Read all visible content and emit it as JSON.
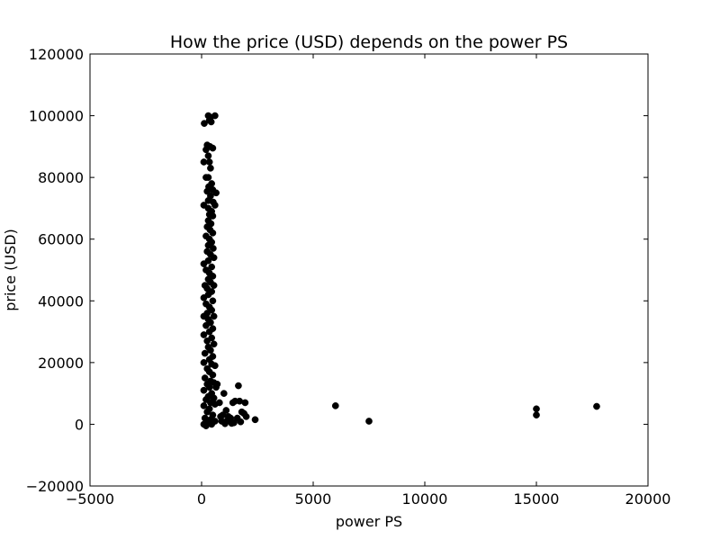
{
  "chart_data": {
    "type": "scatter",
    "title": "How the price (USD) depends on the power PS",
    "xlabel": "power PS",
    "ylabel": "price (USD)",
    "xlim": [
      -5000,
      20000
    ],
    "ylim": [
      -20000,
      120000
    ],
    "xticks": [
      -5000,
      0,
      5000,
      10000,
      15000,
      20000
    ],
    "yticks": [
      -20000,
      0,
      20000,
      40000,
      60000,
      80000,
      100000,
      120000
    ],
    "xtick_labels": [
      "−5000",
      "0",
      "5000",
      "10000",
      "15000",
      "20000"
    ],
    "ytick_labels": [
      "−20000",
      "0",
      "20000",
      "40000",
      "60000",
      "80000",
      "100000",
      "120000"
    ],
    "grid": false,
    "marker_color": "#000000",
    "series": [
      {
        "points": [
          [
            300,
            100000
          ],
          [
            400,
            99500
          ],
          [
            600,
            100000
          ],
          [
            350,
            98500
          ],
          [
            120,
            97500
          ],
          [
            430,
            98000
          ],
          [
            250,
            90500
          ],
          [
            380,
            90000
          ],
          [
            500,
            89500
          ],
          [
            200,
            89000
          ],
          [
            300,
            87000
          ],
          [
            100,
            85000
          ],
          [
            350,
            85000
          ],
          [
            400,
            83000
          ],
          [
            300,
            80000
          ],
          [
            200,
            80000
          ],
          [
            450,
            78000
          ],
          [
            320,
            77000
          ],
          [
            500,
            76000
          ],
          [
            250,
            75500
          ],
          [
            650,
            75000
          ],
          [
            400,
            74000
          ],
          [
            300,
            72500
          ],
          [
            520,
            72000
          ],
          [
            600,
            71000
          ],
          [
            100,
            71000
          ],
          [
            300,
            70000
          ],
          [
            450,
            69000
          ],
          [
            350,
            68000
          ],
          [
            500,
            67500
          ],
          [
            300,
            66000
          ],
          [
            420,
            65000
          ],
          [
            250,
            64000
          ],
          [
            380,
            63000
          ],
          [
            500,
            62000
          ],
          [
            200,
            61000
          ],
          [
            350,
            60000
          ],
          [
            450,
            59000
          ],
          [
            300,
            58000
          ],
          [
            520,
            57000
          ],
          [
            250,
            56000
          ],
          [
            400,
            55000
          ],
          [
            550,
            54000
          ],
          [
            300,
            53000
          ],
          [
            100,
            52000
          ],
          [
            450,
            51000
          ],
          [
            200,
            50000
          ],
          [
            350,
            49000
          ],
          [
            500,
            48000
          ],
          [
            300,
            47000
          ],
          [
            400,
            46000
          ],
          [
            150,
            45000
          ],
          [
            550,
            45000
          ],
          [
            250,
            44000
          ],
          [
            450,
            43000
          ],
          [
            300,
            42000
          ],
          [
            100,
            41000
          ],
          [
            500,
            40000
          ],
          [
            200,
            39000
          ],
          [
            350,
            38000
          ],
          [
            450,
            37000
          ],
          [
            250,
            36000
          ],
          [
            100,
            35000
          ],
          [
            550,
            35000
          ],
          [
            300,
            34000
          ],
          [
            400,
            33000
          ],
          [
            200,
            32000
          ],
          [
            500,
            31000
          ],
          [
            350,
            30000
          ],
          [
            100,
            29000
          ],
          [
            450,
            28000
          ],
          [
            250,
            27000
          ],
          [
            550,
            26000
          ],
          [
            300,
            25000
          ],
          [
            400,
            24000
          ],
          [
            150,
            23000
          ],
          [
            500,
            22000
          ],
          [
            350,
            21000
          ],
          [
            100,
            20000
          ],
          [
            450,
            19500
          ],
          [
            600,
            19000
          ],
          [
            250,
            18000
          ],
          [
            350,
            17000
          ],
          [
            500,
            16000
          ],
          [
            150,
            15000
          ],
          [
            400,
            14000
          ],
          [
            550,
            13500
          ],
          [
            250,
            13000
          ],
          [
            350,
            12000
          ],
          [
            100,
            11000
          ],
          [
            650,
            12000
          ],
          [
            450,
            10000
          ],
          [
            300,
            9000
          ],
          [
            550,
            8500
          ],
          [
            200,
            8000
          ],
          [
            400,
            7000
          ],
          [
            100,
            6000
          ],
          [
            600,
            6500
          ],
          [
            350,
            5000
          ],
          [
            250,
            4000
          ],
          [
            500,
            3000
          ],
          [
            150,
            2000
          ],
          [
            400,
            1500
          ],
          [
            300,
            500
          ],
          [
            100,
            0
          ],
          [
            200,
            -500
          ],
          [
            450,
            0
          ],
          [
            600,
            1000
          ],
          [
            700,
            13000
          ],
          [
            800,
            7000
          ],
          [
            1000,
            10000
          ],
          [
            1100,
            4500
          ],
          [
            950,
            3000
          ],
          [
            1200,
            2500
          ],
          [
            900,
            1000
          ],
          [
            1050,
            200
          ],
          [
            1300,
            2000
          ],
          [
            1400,
            7000
          ],
          [
            1500,
            7500
          ],
          [
            1600,
            2000
          ],
          [
            1650,
            12500
          ],
          [
            1700,
            7500
          ],
          [
            1800,
            4000
          ],
          [
            1900,
            3500
          ],
          [
            1950,
            7000
          ],
          [
            2000,
            2500
          ],
          [
            1750,
            800
          ],
          [
            1450,
            500
          ],
          [
            1150,
            1200
          ],
          [
            850,
            2500
          ],
          [
            1350,
            300
          ],
          [
            2400,
            1500
          ],
          [
            6000,
            6000
          ],
          [
            7500,
            1000
          ],
          [
            15000,
            5000
          ],
          [
            15000,
            3000
          ],
          [
            17700,
            5800
          ]
        ]
      }
    ]
  }
}
